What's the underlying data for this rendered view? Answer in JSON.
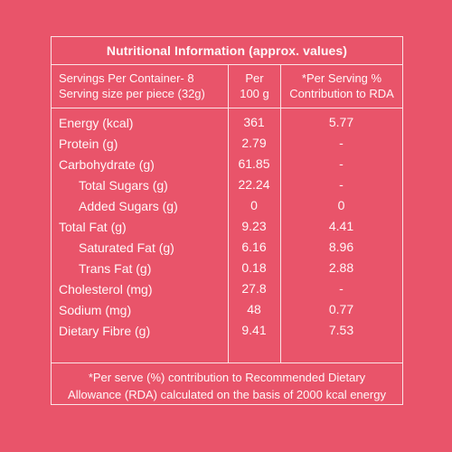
{
  "panel": {
    "title": "Nutritional Information (approx. values)",
    "header": {
      "col1_line1": "Servings Per Container- 8",
      "col1_line2": "Serving size per piece (32g)",
      "col2_line1": "Per",
      "col2_line2": "100 g",
      "col3_line1": "*Per Serving %",
      "col3_line2": "Contribution to RDA"
    },
    "rows": [
      {
        "name": "Energy (kcal)",
        "per100": "361",
        "rda": "5.77"
      },
      {
        "name": "Protein (g)",
        "per100": "2.79",
        "rda": "-"
      },
      {
        "name": "Carbohydrate (g)",
        "per100": "61.85",
        "rda": "-"
      },
      {
        "name": "Total Sugars (g)",
        "per100": "22.24",
        "rda": "-"
      },
      {
        "name": "Added Sugars (g)",
        "per100": "0",
        "rda": "0"
      },
      {
        "name": "Total Fat (g)",
        "per100": "9.23",
        "rda": "4.41"
      },
      {
        "name": "Saturated Fat (g)",
        "per100": "6.16",
        "rda": "8.96"
      },
      {
        "name": "Trans Fat (g)",
        "per100": "0.18",
        "rda": "2.88"
      },
      {
        "name": "Cholesterol (mg)",
        "per100": "27.8",
        "rda": "-"
      },
      {
        "name": "Sodium (mg)",
        "per100": "48",
        "rda": "0.77"
      },
      {
        "name": "Dietary Fibre (g)",
        "per100": "9.41",
        "rda": "7.53"
      }
    ],
    "footnote_line1": "*Per serve (%) contribution to Recommended Dietary",
    "footnote_line2": "Allowance (RDA) calculated on the basis of 2000 kcal energy"
  },
  "colors": {
    "background": "#e9546a",
    "line": "#fbe3e6",
    "text": "#fff7f8"
  }
}
